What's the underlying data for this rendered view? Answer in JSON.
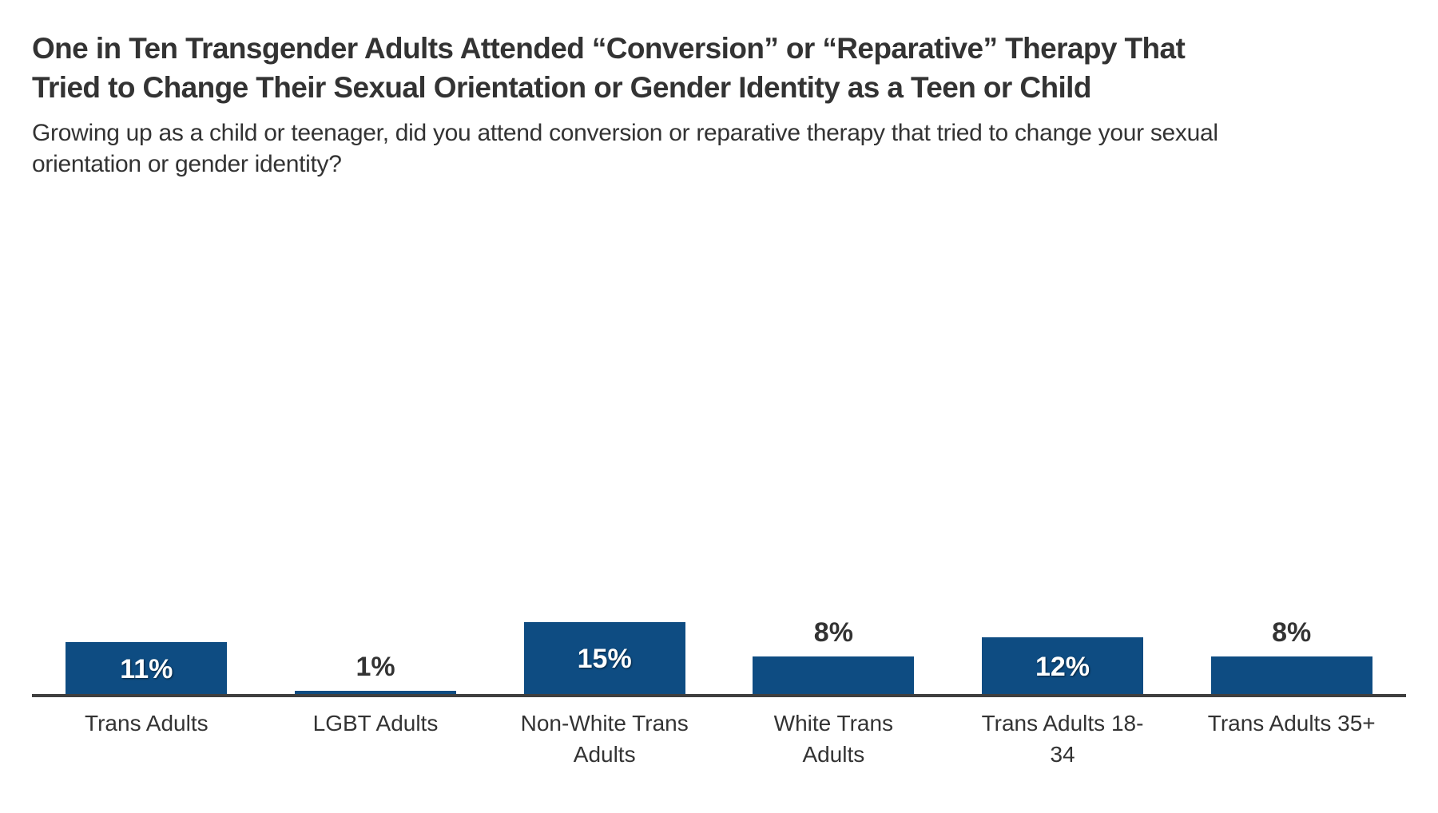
{
  "header": {
    "title_lines": [
      "One in Ten Transgender Adults Attended “Conversion” or “Reparative” Therapy That",
      "Tried to Change Their Sexual Orientation or Gender Identity as a Teen or Child"
    ],
    "subtitle_lines": [
      "Growing up as a child or teenager, did you attend conversion or reparative therapy that tried to change your sexual",
      "orientation or gender identity?"
    ]
  },
  "chart_data": {
    "type": "bar",
    "title": "One in Ten Transgender Adults Attended “Conversion” or “Reparative” Therapy That Tried to Change Their Sexual Orientation or Gender Identity as a Teen or Child",
    "subtitle": "Growing up as a child or teenager, did you attend conversion or reparative therapy that tried to change your sexual orientation or gender identity?",
    "categories": [
      "Trans Adults",
      "LGBT Adults",
      "Non-White Trans Adults",
      "White Trans Adults",
      "Trans Adults 18-34",
      "Trans Adults 35+"
    ],
    "category_label_wraps": [
      "Trans Adults",
      "LGBT Adults",
      "Non-White Trans\nAdults",
      "White Trans\nAdults",
      "Trans Adults 18-\n34",
      "Trans Adults 35+"
    ],
    "values": [
      11,
      1,
      15,
      8,
      12,
      8
    ],
    "value_labels": [
      "11%",
      "1%",
      "15%",
      "8%",
      "12%",
      "8%"
    ],
    "label_inside_bar": [
      true,
      false,
      true,
      false,
      true,
      false
    ],
    "xlabel": "",
    "ylabel": "",
    "ylim": [
      0,
      100
    ],
    "grid": false,
    "legend": false,
    "colors": {
      "bar": "#0e4c82",
      "axis_line": "#3f3f3f",
      "text": "#333333",
      "value_inside": "#ffffff",
      "background": "#ffffff"
    }
  }
}
